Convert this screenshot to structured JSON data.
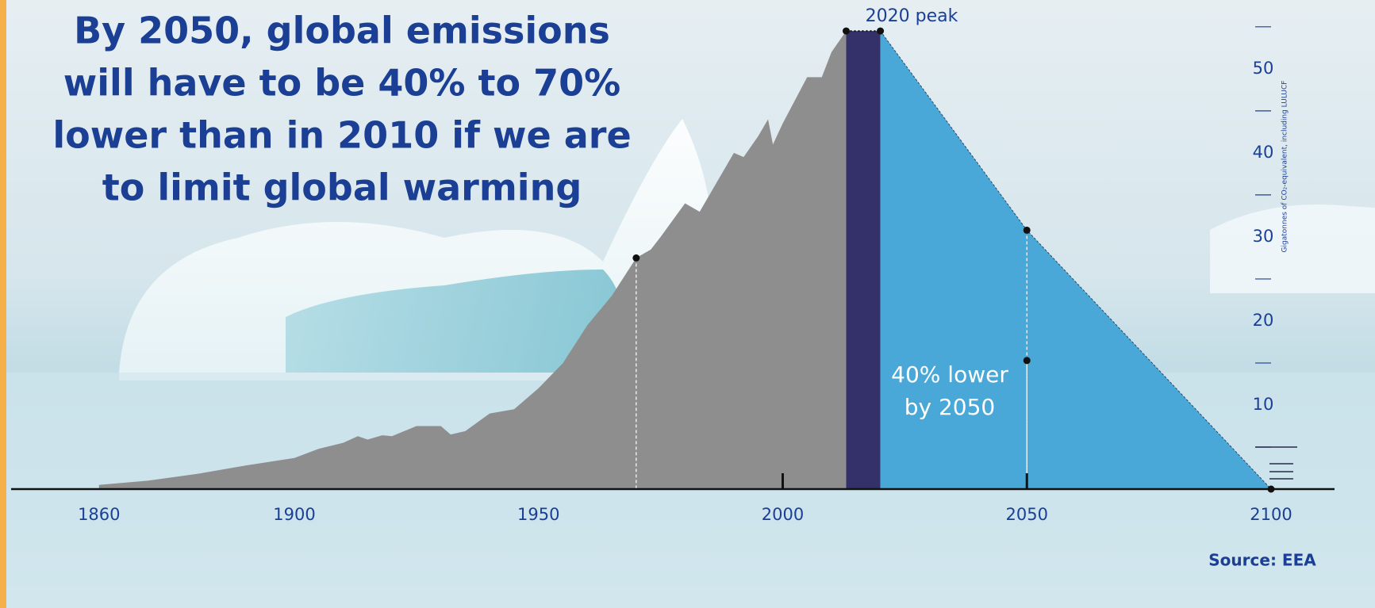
{
  "chart_data": {
    "type": "area",
    "title": [
      "By 2050, global emissions",
      "will have to be 40% to 70%",
      "lower than in 2010 if we are",
      "to limit global warming"
    ],
    "y_label": "Gigatonnes of CO₂-equivalent, including LULUCF",
    "source": "Source: EEA",
    "peak_label": "2020 peak",
    "annotation": [
      "40% lower",
      "by 2050"
    ],
    "xlim": [
      1842,
      2113
    ],
    "xticks": [
      1860,
      1900,
      1950,
      2000,
      2050,
      2100
    ],
    "xtick_marks": [
      2000,
      2050
    ],
    "ylim": [
      0,
      58
    ],
    "yticks": [
      10,
      20,
      30,
      40,
      50
    ],
    "yminor": [
      5,
      15,
      25,
      35,
      45,
      55
    ],
    "series": [
      {
        "color": "#8e8e8e",
        "x": [
          1860,
          1870,
          1880,
          1890,
          1900,
          1905,
          1910,
          1913,
          1915,
          1918,
          1920,
          1925,
          1930,
          1932,
          1935,
          1940,
          1945,
          1950,
          1955,
          1960,
          1965,
          1970,
          1973,
          1975,
          1980,
          1983,
          1985,
          1990,
          1992,
          1995,
          1997,
          1998,
          2000,
          2005,
          2008,
          2010,
          2013
        ],
        "values": [
          0.5,
          1,
          1.8,
          2.8,
          3.7,
          4.8,
          5.5,
          6.3,
          5.9,
          6.4,
          6.3,
          7.5,
          7.5,
          6.5,
          6.9,
          9,
          9.5,
          12,
          15,
          19.5,
          23,
          27.5,
          28.5,
          30,
          34,
          33,
          35,
          40,
          39.5,
          42,
          44,
          41,
          43.5,
          49,
          49,
          52,
          54.5
        ]
      },
      {
        "color": "#33306a",
        "x": [
          2013,
          2020
        ],
        "values": [
          54.5,
          54.5
        ]
      },
      {
        "color": "#4aa8d8",
        "x": [
          2020,
          2050,
          2100
        ],
        "values": [
          54.5,
          30.8,
          0
        ]
      }
    ],
    "markers": [
      {
        "x": 1970,
        "value": 27.5
      },
      {
        "x": 2050,
        "value": 30.8
      },
      {
        "x": 2050,
        "value": 15.3
      }
    ]
  }
}
